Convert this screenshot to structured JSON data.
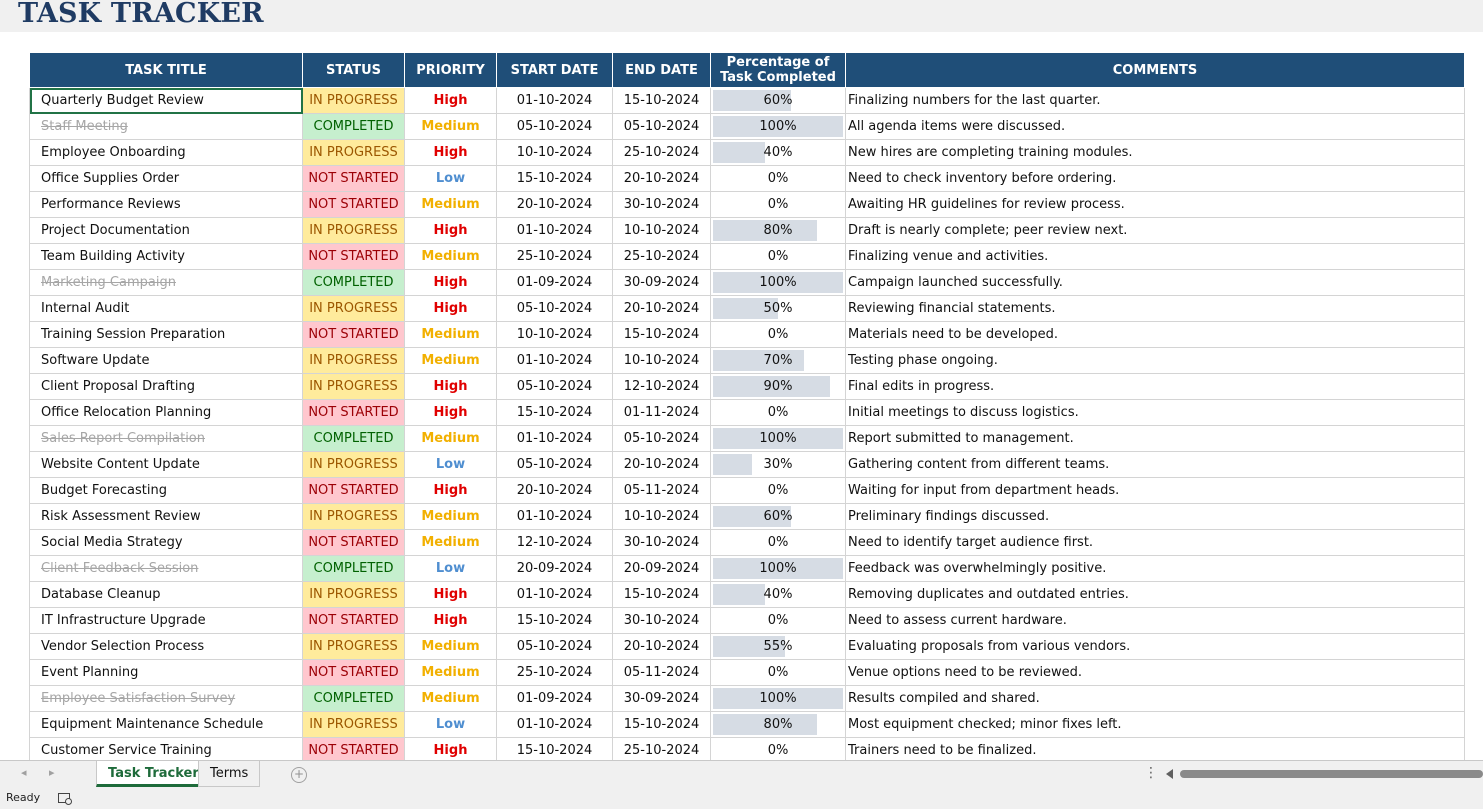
{
  "title": "TASK TRACKER",
  "columns": {
    "task_title": "TASK TITLE",
    "status": "STATUS",
    "priority": "PRIORITY",
    "start_date": "START DATE",
    "end_date": "END DATE",
    "percentage_line1": "Percentage of",
    "percentage_line2": "Task Completed",
    "comments": "COMMENTS"
  },
  "colors": {
    "header_bg": "#1f4e78",
    "in_progress_bg": "#ffeb9c",
    "completed_bg": "#c6efce",
    "not_started_bg": "#ffc7ce",
    "high": "#e00000",
    "medium": "#f2b000",
    "low": "#4f8ed0"
  },
  "rows": [
    {
      "task": "Quarterly Budget Review",
      "status": "IN PROGRESS",
      "priority": "High",
      "start": "01-10-2024",
      "end": "15-10-2024",
      "pct": 0.6,
      "pct_label": "60%",
      "comment": "Finalizing numbers for the last quarter."
    },
    {
      "task": "Staff Meeting",
      "status": "COMPLETED",
      "priority": "Medium",
      "start": "05-10-2024",
      "end": "05-10-2024",
      "pct": 1.0,
      "pct_label": "100%",
      "comment": "All agenda items were discussed."
    },
    {
      "task": "Employee Onboarding",
      "status": "IN PROGRESS",
      "priority": "High",
      "start": "10-10-2024",
      "end": "25-10-2024",
      "pct": 0.4,
      "pct_label": "40%",
      "comment": "New hires are completing training modules."
    },
    {
      "task": "Office Supplies Order",
      "status": "NOT STARTED",
      "priority": "Low",
      "start": "15-10-2024",
      "end": "20-10-2024",
      "pct": 0,
      "pct_label": "0%",
      "comment": "Need to check inventory before ordering."
    },
    {
      "task": "Performance Reviews",
      "status": "NOT STARTED",
      "priority": "Medium",
      "start": "20-10-2024",
      "end": "30-10-2024",
      "pct": 0,
      "pct_label": "0%",
      "comment": "Awaiting HR guidelines for review process."
    },
    {
      "task": "Project Documentation",
      "status": "IN PROGRESS",
      "priority": "High",
      "start": "01-10-2024",
      "end": "10-10-2024",
      "pct": 0.8,
      "pct_label": "80%",
      "comment": "Draft is nearly complete; peer review next."
    },
    {
      "task": "Team Building Activity",
      "status": "NOT STARTED",
      "priority": "Medium",
      "start": "25-10-2024",
      "end": "25-10-2024",
      "pct": 0,
      "pct_label": "0%",
      "comment": "Finalizing venue and activities."
    },
    {
      "task": "Marketing Campaign",
      "status": "COMPLETED",
      "priority": "High",
      "start": "01-09-2024",
      "end": "30-09-2024",
      "pct": 1.0,
      "pct_label": "100%",
      "comment": "Campaign launched successfully."
    },
    {
      "task": "Internal Audit",
      "status": "IN PROGRESS",
      "priority": "High",
      "start": "05-10-2024",
      "end": "20-10-2024",
      "pct": 0.5,
      "pct_label": "50%",
      "comment": "Reviewing financial statements."
    },
    {
      "task": "Training Session Preparation",
      "status": "NOT STARTED",
      "priority": "Medium",
      "start": "10-10-2024",
      "end": "15-10-2024",
      "pct": 0,
      "pct_label": "0%",
      "comment": "Materials need to be developed."
    },
    {
      "task": "Software Update",
      "status": "IN PROGRESS",
      "priority": "Medium",
      "start": "01-10-2024",
      "end": "10-10-2024",
      "pct": 0.7,
      "pct_label": "70%",
      "comment": "Testing phase ongoing."
    },
    {
      "task": "Client Proposal Drafting",
      "status": "IN PROGRESS",
      "priority": "High",
      "start": "05-10-2024",
      "end": "12-10-2024",
      "pct": 0.9,
      "pct_label": "90%",
      "comment": "Final edits in progress."
    },
    {
      "task": "Office Relocation Planning",
      "status": "NOT STARTED",
      "priority": "High",
      "start": "15-10-2024",
      "end": "01-11-2024",
      "pct": 0,
      "pct_label": "0%",
      "comment": "Initial meetings to discuss logistics."
    },
    {
      "task": "Sales Report Compilation",
      "status": "COMPLETED",
      "priority": "Medium",
      "start": "01-10-2024",
      "end": "05-10-2024",
      "pct": 1.0,
      "pct_label": "100%",
      "comment": "Report submitted to management."
    },
    {
      "task": "Website Content Update",
      "status": "IN PROGRESS",
      "priority": "Low",
      "start": "05-10-2024",
      "end": "20-10-2024",
      "pct": 0.3,
      "pct_label": "30%",
      "comment": "Gathering content from different teams."
    },
    {
      "task": "Budget Forecasting",
      "status": "NOT STARTED",
      "priority": "High",
      "start": "20-10-2024",
      "end": "05-11-2024",
      "pct": 0,
      "pct_label": "0%",
      "comment": "Waiting for input from department heads."
    },
    {
      "task": "Risk Assessment Review",
      "status": "IN PROGRESS",
      "priority": "Medium",
      "start": "01-10-2024",
      "end": "10-10-2024",
      "pct": 0.6,
      "pct_label": "60%",
      "comment": "Preliminary findings discussed."
    },
    {
      "task": "Social Media Strategy",
      "status": "NOT STARTED",
      "priority": "Medium",
      "start": "12-10-2024",
      "end": "30-10-2024",
      "pct": 0,
      "pct_label": "0%",
      "comment": "Need to identify target audience first."
    },
    {
      "task": "Client Feedback Session",
      "status": "COMPLETED",
      "priority": "Low",
      "start": "20-09-2024",
      "end": "20-09-2024",
      "pct": 1.0,
      "pct_label": "100%",
      "comment": "Feedback was overwhelmingly positive."
    },
    {
      "task": "Database Cleanup",
      "status": "IN PROGRESS",
      "priority": "High",
      "start": "01-10-2024",
      "end": "15-10-2024",
      "pct": 0.4,
      "pct_label": "40%",
      "comment": "Removing duplicates and outdated entries."
    },
    {
      "task": "IT Infrastructure Upgrade",
      "status": "NOT STARTED",
      "priority": "High",
      "start": "15-10-2024",
      "end": "30-10-2024",
      "pct": 0,
      "pct_label": "0%",
      "comment": "Need to assess current hardware."
    },
    {
      "task": "Vendor Selection Process",
      "status": "IN PROGRESS",
      "priority": "Medium",
      "start": "05-10-2024",
      "end": "20-10-2024",
      "pct": 0.55,
      "pct_label": "55%",
      "comment": "Evaluating proposals from various vendors."
    },
    {
      "task": "Event Planning",
      "status": "NOT STARTED",
      "priority": "Medium",
      "start": "25-10-2024",
      "end": "05-11-2024",
      "pct": 0,
      "pct_label": "0%",
      "comment": "Venue options need to be reviewed."
    },
    {
      "task": "Employee Satisfaction Survey",
      "status": "COMPLETED",
      "priority": "Medium",
      "start": "01-09-2024",
      "end": "30-09-2024",
      "pct": 1.0,
      "pct_label": "100%",
      "comment": "Results compiled and shared."
    },
    {
      "task": "Equipment Maintenance Schedule",
      "status": "IN PROGRESS",
      "priority": "Low",
      "start": "01-10-2024",
      "end": "15-10-2024",
      "pct": 0.8,
      "pct_label": "80%",
      "comment": "Most equipment checked; minor fixes left."
    },
    {
      "task": "Customer Service Training",
      "status": "NOT STARTED",
      "priority": "High",
      "start": "15-10-2024",
      "end": "25-10-2024",
      "pct": 0,
      "pct_label": "0%",
      "comment": "Trainers need to be finalized."
    }
  ],
  "sheet_tabs": [
    "Task Tracker",
    "Terms"
  ],
  "active_tab": "Task Tracker",
  "status_bar": {
    "ready": "Ready"
  }
}
